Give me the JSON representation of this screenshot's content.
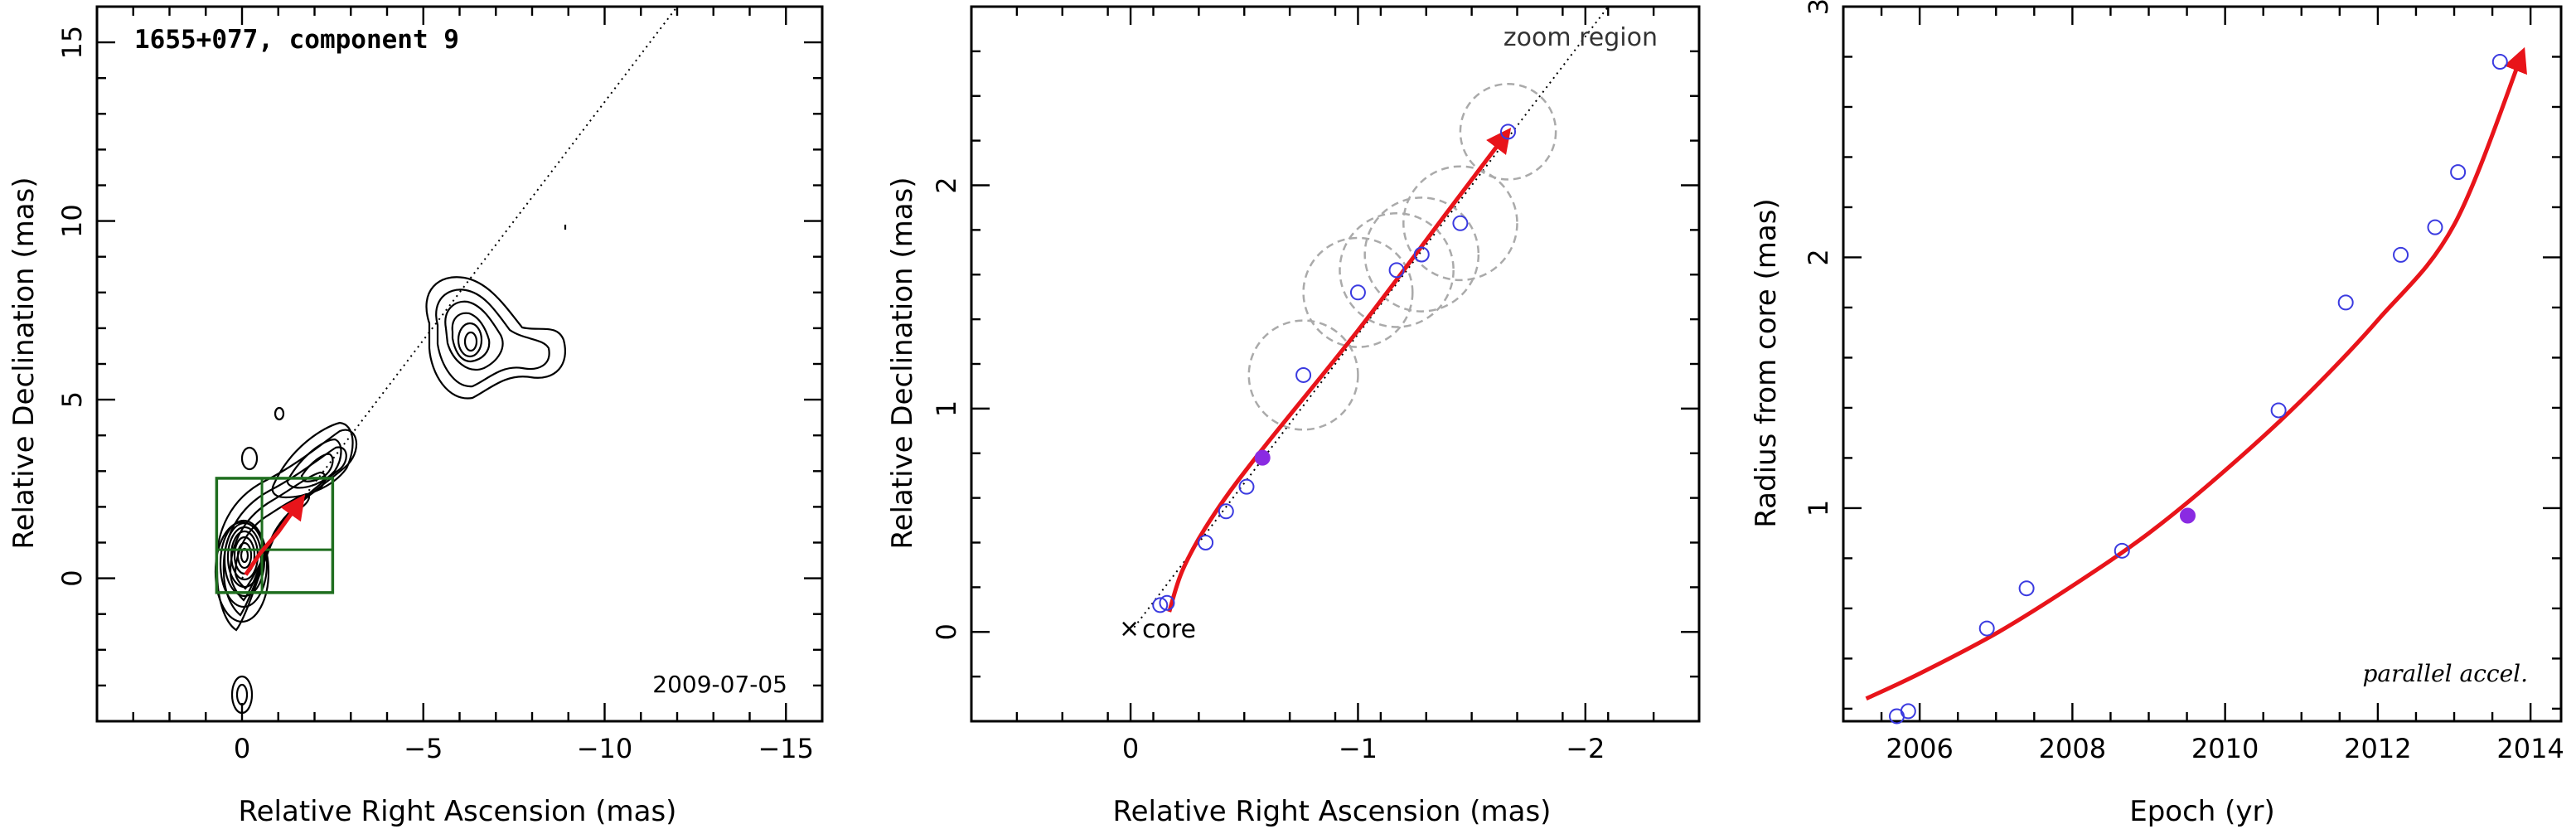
{
  "chart_data": [
    {
      "type": "contour",
      "title": "1655+077, component 9",
      "annotation": "2009-07-05",
      "xlabel": "Relative Right Ascension (mas)",
      "ylabel": "Relative Declination (mas)",
      "xlim": [
        4,
        -16
      ],
      "ylim": [
        -4,
        16
      ],
      "xticks": [
        0,
        -5,
        -10,
        -15
      ],
      "xtick_labels": [
        "0",
        "−5",
        "−10",
        "−15"
      ],
      "yticks": [
        0,
        5,
        10,
        15
      ],
      "ytick_labels": [
        "0",
        "5",
        "10",
        "15"
      ],
      "jet_axis": [
        [
          0,
          0
        ],
        [
          -12,
          16
        ]
      ],
      "zoom_box": {
        "x": [
          0.7,
          -2.5
        ],
        "y": [
          -0.4,
          2.8
        ]
      },
      "trajectory_color": "#e8141a",
      "box_color": "#1f6e1f",
      "grid": false
    },
    {
      "type": "scatter",
      "annotations": [
        "zoom region",
        "core"
      ],
      "xlabel": "Relative Right Ascension (mas)",
      "ylabel": "Relative Declination (mas)",
      "xlim": [
        0.7,
        -2.5
      ],
      "ylim": [
        -0.4,
        2.8
      ],
      "xticks": [
        0,
        -1,
        -2
      ],
      "xtick_labels": [
        "0",
        "−1",
        "−2"
      ],
      "yticks": [
        0,
        1,
        2
      ],
      "ytick_labels": [
        "0",
        "1",
        "2"
      ],
      "core": [
        0,
        0
      ],
      "jet_axis": [
        [
          0,
          0
        ],
        [
          -2.1,
          2.8
        ]
      ],
      "points": [
        {
          "x": -0.13,
          "y": 0.12,
          "filled": false
        },
        {
          "x": -0.16,
          "y": 0.13,
          "filled": false
        },
        {
          "x": -0.33,
          "y": 0.4,
          "filled": false
        },
        {
          "x": -0.42,
          "y": 0.54,
          "filled": false
        },
        {
          "x": -0.51,
          "y": 0.65,
          "filled": false
        },
        {
          "x": -0.58,
          "y": 0.78,
          "filled": true
        },
        {
          "x": -0.76,
          "y": 1.15,
          "filled": false
        },
        {
          "x": -1.0,
          "y": 1.52,
          "filled": false
        },
        {
          "x": -1.17,
          "y": 1.62,
          "filled": false
        },
        {
          "x": -1.28,
          "y": 1.69,
          "filled": false
        },
        {
          "x": -1.45,
          "y": 1.83,
          "filled": false
        },
        {
          "x": -1.66,
          "y": 2.24,
          "filled": false
        }
      ],
      "error_circles": [
        {
          "x": -0.76,
          "y": 1.15,
          "r": 0.24
        },
        {
          "x": -1.0,
          "y": 1.52,
          "r": 0.24
        },
        {
          "x": -1.17,
          "y": 1.62,
          "r": 0.25
        },
        {
          "x": -1.28,
          "y": 1.69,
          "r": 0.25
        },
        {
          "x": -1.45,
          "y": 1.83,
          "r": 0.25
        },
        {
          "x": -1.66,
          "y": 2.24,
          "r": 0.21
        }
      ],
      "trajectory": [
        [
          -0.17,
          0.09
        ],
        [
          -0.23,
          0.28
        ],
        [
          -0.35,
          0.5
        ],
        [
          -0.55,
          0.78
        ],
        [
          -1.0,
          1.35
        ],
        [
          -1.4,
          1.89
        ],
        [
          -1.66,
          2.24
        ]
      ],
      "point_color": "#3a3ae0",
      "filled_point_color": "#8a2be2",
      "trajectory_color": "#e8141a",
      "grid": false
    },
    {
      "type": "scatter",
      "annotation": "parallel accel.",
      "xlabel": "Epoch (yr)",
      "ylabel": "Radius from core (mas)",
      "xlim": [
        2005,
        2014.4
      ],
      "ylim": [
        0.15,
        3.0
      ],
      "xticks": [
        2006,
        2008,
        2010,
        2012,
        2014
      ],
      "xtick_labels": [
        "2006",
        "2008",
        "2010",
        "2012",
        "2014"
      ],
      "yticks": [
        1,
        2,
        3
      ],
      "ytick_labels": [
        "1",
        "2",
        "3"
      ],
      "points": [
        {
          "x": 2005.7,
          "y": 0.17,
          "filled": false
        },
        {
          "x": 2005.85,
          "y": 0.19,
          "filled": false
        },
        {
          "x": 2006.88,
          "y": 0.52,
          "filled": false
        },
        {
          "x": 2007.4,
          "y": 0.68,
          "filled": false
        },
        {
          "x": 2008.65,
          "y": 0.83,
          "filled": false
        },
        {
          "x": 2009.51,
          "y": 0.97,
          "filled": true
        },
        {
          "x": 2010.7,
          "y": 1.39,
          "filled": false
        },
        {
          "x": 2011.58,
          "y": 1.82,
          "filled": false
        },
        {
          "x": 2012.3,
          "y": 2.01,
          "filled": false
        },
        {
          "x": 2012.75,
          "y": 2.12,
          "filled": false
        },
        {
          "x": 2013.05,
          "y": 2.34,
          "filled": false
        },
        {
          "x": 2013.6,
          "y": 2.78,
          "filled": false
        }
      ],
      "fit_curve": [
        [
          2005.3,
          0.24
        ],
        [
          2006.0,
          0.34
        ],
        [
          2007.0,
          0.5
        ],
        [
          2008.0,
          0.69
        ],
        [
          2009.0,
          0.9
        ],
        [
          2010.0,
          1.15
        ],
        [
          2011.0,
          1.43
        ],
        [
          2012.0,
          1.75
        ],
        [
          2013.0,
          2.13
        ],
        [
          2013.9,
          2.82
        ]
      ],
      "point_color": "#3a3ae0",
      "filled_point_color": "#8a2be2",
      "curve_color": "#e8141a",
      "grid": false
    }
  ]
}
